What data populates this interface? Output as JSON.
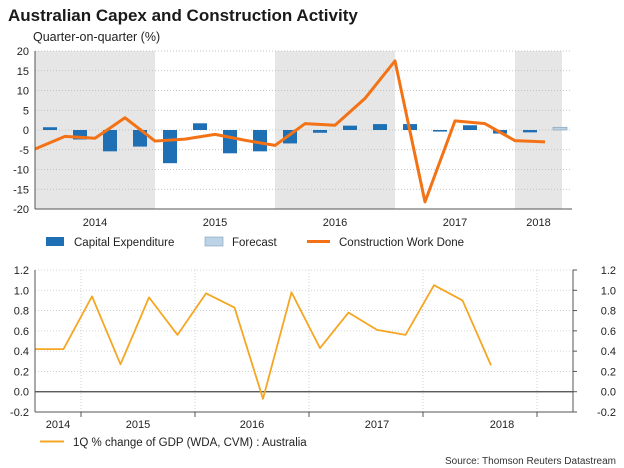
{
  "title": "Australian Capex and Construction Activity",
  "subtitle": "Quarter-on-quarter (%)",
  "source": "Source: Thomson Reuters Datastream",
  "colors": {
    "capex": "#1f6fb5",
    "forecast": "#bcd3e6",
    "construction": "#f47216",
    "gdp": "#f5a623",
    "shade": "#e6e6e6"
  },
  "chart_data": [
    {
      "type": "bar+line",
      "title": "Australian Capex and Construction Activity",
      "ylabel": "Quarter-on-quarter (%)",
      "ylim": [
        -20,
        20
      ],
      "yticks": [
        20,
        15,
        10,
        5,
        0,
        -5,
        -10,
        -15,
        -20
      ],
      "year_labels": [
        "2014",
        "2015",
        "2016",
        "2017",
        "2018"
      ],
      "shaded_years": [
        "2014",
        "2016",
        "2018"
      ],
      "quarters_start": "2014-Q1",
      "series": [
        {
          "name": "Capital Expenditure",
          "kind": "bar",
          "values": [
            0.7,
            -2.4,
            -5.4,
            -4.2,
            -8.4,
            1.7,
            -5.9,
            -5.4,
            -3.4,
            -0.7,
            1.1,
            1.5,
            1.5,
            -0.4,
            1.2,
            -0.9,
            -0.6,
            null
          ]
        },
        {
          "name": "Forecast",
          "kind": "bar",
          "values": [
            null,
            null,
            null,
            null,
            null,
            null,
            null,
            null,
            null,
            null,
            null,
            null,
            null,
            null,
            null,
            null,
            null,
            0.7
          ]
        },
        {
          "name": "Construction Work Done",
          "kind": "line",
          "values": [
            -4.8,
            -1.6,
            -2.1,
            3.1,
            -2.8,
            -2.3,
            -1.1,
            -2.6,
            -3.9,
            1.6,
            1.2,
            8.0,
            17.5,
            -18.2,
            2.3,
            1.6,
            -2.7,
            -3.0
          ]
        }
      ],
      "legend": [
        "Capital Expenditure",
        "Forecast",
        "Construction Work Done"
      ]
    },
    {
      "type": "line",
      "ylim": [
        -0.2,
        1.2
      ],
      "yticks_left": [
        "1.2",
        "1.0",
        "0.8",
        "0.6",
        "0.4",
        "0.2",
        "0.0",
        "-0.2"
      ],
      "yticks_right": [
        "1.2",
        "1.0",
        "0.8",
        "0.6",
        "0.4",
        "0.2",
        "0.0",
        "-0.2"
      ],
      "year_labels": [
        "2014",
        "2015",
        "2016",
        "2017",
        "2018"
      ],
      "quarters_start": "2014-Q1",
      "series": [
        {
          "name": "1Q % change of GDP (WDA, CVM) : Australia",
          "values": [
            0.42,
            0.42,
            0.94,
            0.27,
            0.93,
            0.56,
            0.97,
            0.83,
            -0.07,
            0.98,
            0.43,
            0.78,
            0.61,
            0.56,
            1.05,
            0.9,
            0.26
          ]
        }
      ]
    }
  ]
}
